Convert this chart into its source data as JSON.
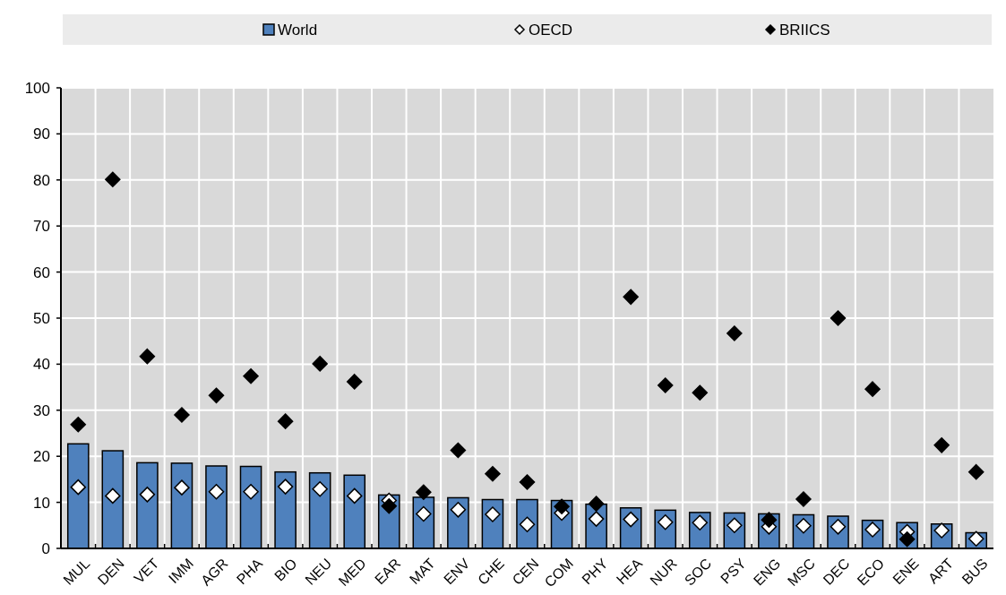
{
  "chart_data": {
    "type": "bar",
    "categories": [
      "MUL",
      "DEN",
      "VET",
      "IMM",
      "AGR",
      "PHA",
      "BIO",
      "NEU",
      "MED",
      "EAR",
      "MAT",
      "ENV",
      "CHE",
      "CEN",
      "COM",
      "PHY",
      "HEA",
      "NUR",
      "SOC",
      "PSY",
      "ENG",
      "MSC",
      "DEC",
      "ECO",
      "ENE",
      "ART",
      "BUS"
    ],
    "series": [
      {
        "name": "World",
        "color": "#4f81bd",
        "values": [
          22.7,
          21.2,
          18.6,
          18.5,
          17.9,
          17.8,
          16.6,
          16.4,
          15.9,
          11.6,
          11.1,
          11.0,
          10.6,
          10.6,
          10.4,
          9.6,
          8.8,
          8.3,
          7.8,
          7.7,
          7.5,
          7.3,
          7.0,
          6.1,
          5.6,
          5.3,
          3.4
        ]
      },
      {
        "name": "OECD",
        "type": "scatter",
        "color": "#ffffff",
        "values": [
          13.3,
          11.4,
          11.7,
          13.2,
          12.3,
          12.3,
          13.4,
          12.9,
          11.4,
          10.4,
          7.5,
          8.4,
          7.4,
          5.2,
          7.7,
          6.4,
          6.3,
          5.7,
          5.6,
          5.0,
          4.7,
          4.9,
          4.7,
          4.1,
          3.6,
          3.9,
          2.1
        ]
      },
      {
        "name": "BRIICS",
        "type": "scatter",
        "color": "#000000",
        "values": [
          26.9,
          80.1,
          41.7,
          29.0,
          33.2,
          37.4,
          27.6,
          40.1,
          36.2,
          9.2,
          12.2,
          21.3,
          16.2,
          14.4,
          9.1,
          9.7,
          54.6,
          35.4,
          33.8,
          46.7,
          6.2,
          10.7,
          50.0,
          34.6,
          2.0,
          22.4,
          16.6
        ]
      }
    ],
    "ylim": [
      0,
      100
    ],
    "yticks": [
      0,
      10,
      20,
      30,
      40,
      50,
      60,
      70,
      80,
      90,
      100
    ],
    "grid": true,
    "legend": "top",
    "marker": "diamond"
  }
}
